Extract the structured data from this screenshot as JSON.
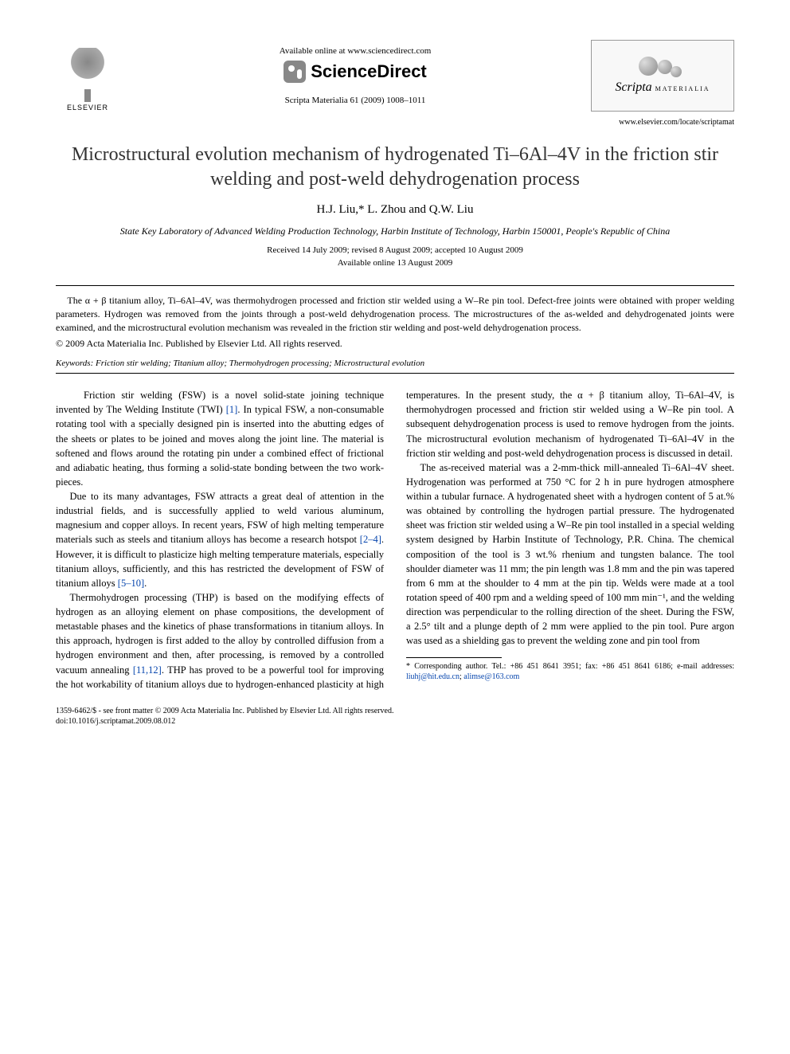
{
  "header": {
    "elsevier_label": "ELSEVIER",
    "available_online": "Available online at www.sciencedirect.com",
    "sciencedirect": "ScienceDirect",
    "citation": "Scripta Materialia 61 (2009) 1008–1011",
    "journal_name": "Scripta",
    "journal_sub": "MATERIALIA",
    "journal_url": "www.elsevier.com/locate/scriptamat"
  },
  "article": {
    "title": "Microstructural evolution mechanism of hydrogenated Ti–6Al–4V in the friction stir welding and post-weld dehydrogenation process",
    "authors": "H.J. Liu,* L. Zhou and Q.W. Liu",
    "affiliation": "State Key Laboratory of Advanced Welding Production Technology, Harbin Institute of Technology, Harbin 150001, People's Republic of China",
    "received": "Received 14 July 2009; revised 8 August 2009; accepted 10 August 2009",
    "available": "Available online 13 August 2009"
  },
  "abstract": {
    "text": "The α + β titanium alloy, Ti–6Al–4V, was thermohydrogen processed and friction stir welded using a W–Re pin tool. Defect-free joints were obtained with proper welding parameters. Hydrogen was removed from the joints through a post-weld dehydrogenation process. The microstructures of the as-welded and dehydrogenated joints were examined, and the microstructural evolution mechanism was revealed in the friction stir welding and post-weld dehydrogenation process.",
    "copyright": "© 2009 Acta Materialia Inc. Published by Elsevier Ltd. All rights reserved."
  },
  "keywords": {
    "label": "Keywords:",
    "list": "Friction stir welding; Titanium alloy; Thermohydrogen processing; Microstructural evolution"
  },
  "body": {
    "p1a": "Friction stir welding (FSW) is a novel solid-state joining technique invented by The Welding Institute (TWI) ",
    "p1_ref1": "[1]",
    "p1b": ". In typical FSW, a non-consumable rotating tool with a specially designed pin is inserted into the abutting edges of the sheets or plates to be joined and moves along the joint line. The material is softened and flows around the rotating pin under a combined effect of frictional and adiabatic heating, thus forming a solid-state bonding between the two work-pieces.",
    "p2a": "Due to its many advantages, FSW attracts a great deal of attention in the industrial fields, and is successfully applied to weld various aluminum, magnesium and copper alloys. In recent years, FSW of high melting temperature materials such as steels and titanium alloys has become a research hotspot ",
    "p2_ref1": "[2–4]",
    "p2b": ". However, it is difficult to plasticize high melting temperature materials, especially titanium alloys, sufficiently, and this has restricted the development of FSW of titanium alloys ",
    "p2_ref2": "[5–10]",
    "p2c": ".",
    "p3a": "Thermohydrogen processing (THP) is based on the modifying effects of hydrogen as an alloying element on phase compositions, the development of metastable phases and the kinetics of phase transformations in titanium alloys. In this approach, hydrogen is first added to the alloy by controlled diffusion from a hydrogen environment and then, after processing, is removed by a controlled vacuum annealing ",
    "p3_ref1": "[11,12]",
    "p3b": ". THP has proved to be a powerful tool for improving the hot workability of titanium alloys due to hydrogen-enhanced plasticity at high temperatures. In the present study, the α + β titanium alloy, Ti–6Al–4V, is thermohydrogen processed and friction stir welded using a W–Re pin tool. A subsequent dehydrogenation process is used to remove hydrogen from the joints. The microstructural evolution mechanism of hydrogenated Ti–6Al–4V in the friction stir welding and post-weld dehydrogenation process is discussed in detail.",
    "p4": "The as-received material was a 2-mm-thick mill-annealed Ti–6Al–4V sheet. Hydrogenation was performed at 750 °C for 2 h in pure hydrogen atmosphere within a tubular furnace. A hydrogenated sheet with a hydrogen content of 5 at.% was obtained by controlling the hydrogen partial pressure. The hydrogenated sheet was friction stir welded using a W–Re pin tool installed in a special welding system designed by Harbin Institute of Technology, P.R. China. The chemical composition of the tool is 3 wt.% rhenium and tungsten balance. The tool shoulder diameter was 11 mm; the pin length was 1.8 mm and the pin was tapered from 6 mm at the shoulder to 4 mm at the pin tip. Welds were made at a tool rotation speed of 400 rpm and a welding speed of 100 mm min⁻¹, and the welding direction was perpendicular to the rolling direction of the sheet. During the FSW, a 2.5° tilt and a plunge depth of 2 mm were applied to the pin tool. Pure argon was used as a shielding gas to prevent the welding zone and pin tool from"
  },
  "footnote": {
    "text_a": "* Corresponding author. Tel.: +86 451 8641 3951; fax: +86 451 8641 6186; e-mail addresses: ",
    "email1": "liuhj@hit.edu.cn",
    "sep": "; ",
    "email2": "alimse@163.com"
  },
  "bottom": {
    "line1": "1359-6462/$ - see front matter © 2009 Acta Materialia Inc. Published by Elsevier Ltd. All rights reserved.",
    "line2": "doi:10.1016/j.scriptamat.2009.08.012"
  },
  "colors": {
    "link": "#0645ad",
    "text": "#000000",
    "title": "#333333"
  }
}
